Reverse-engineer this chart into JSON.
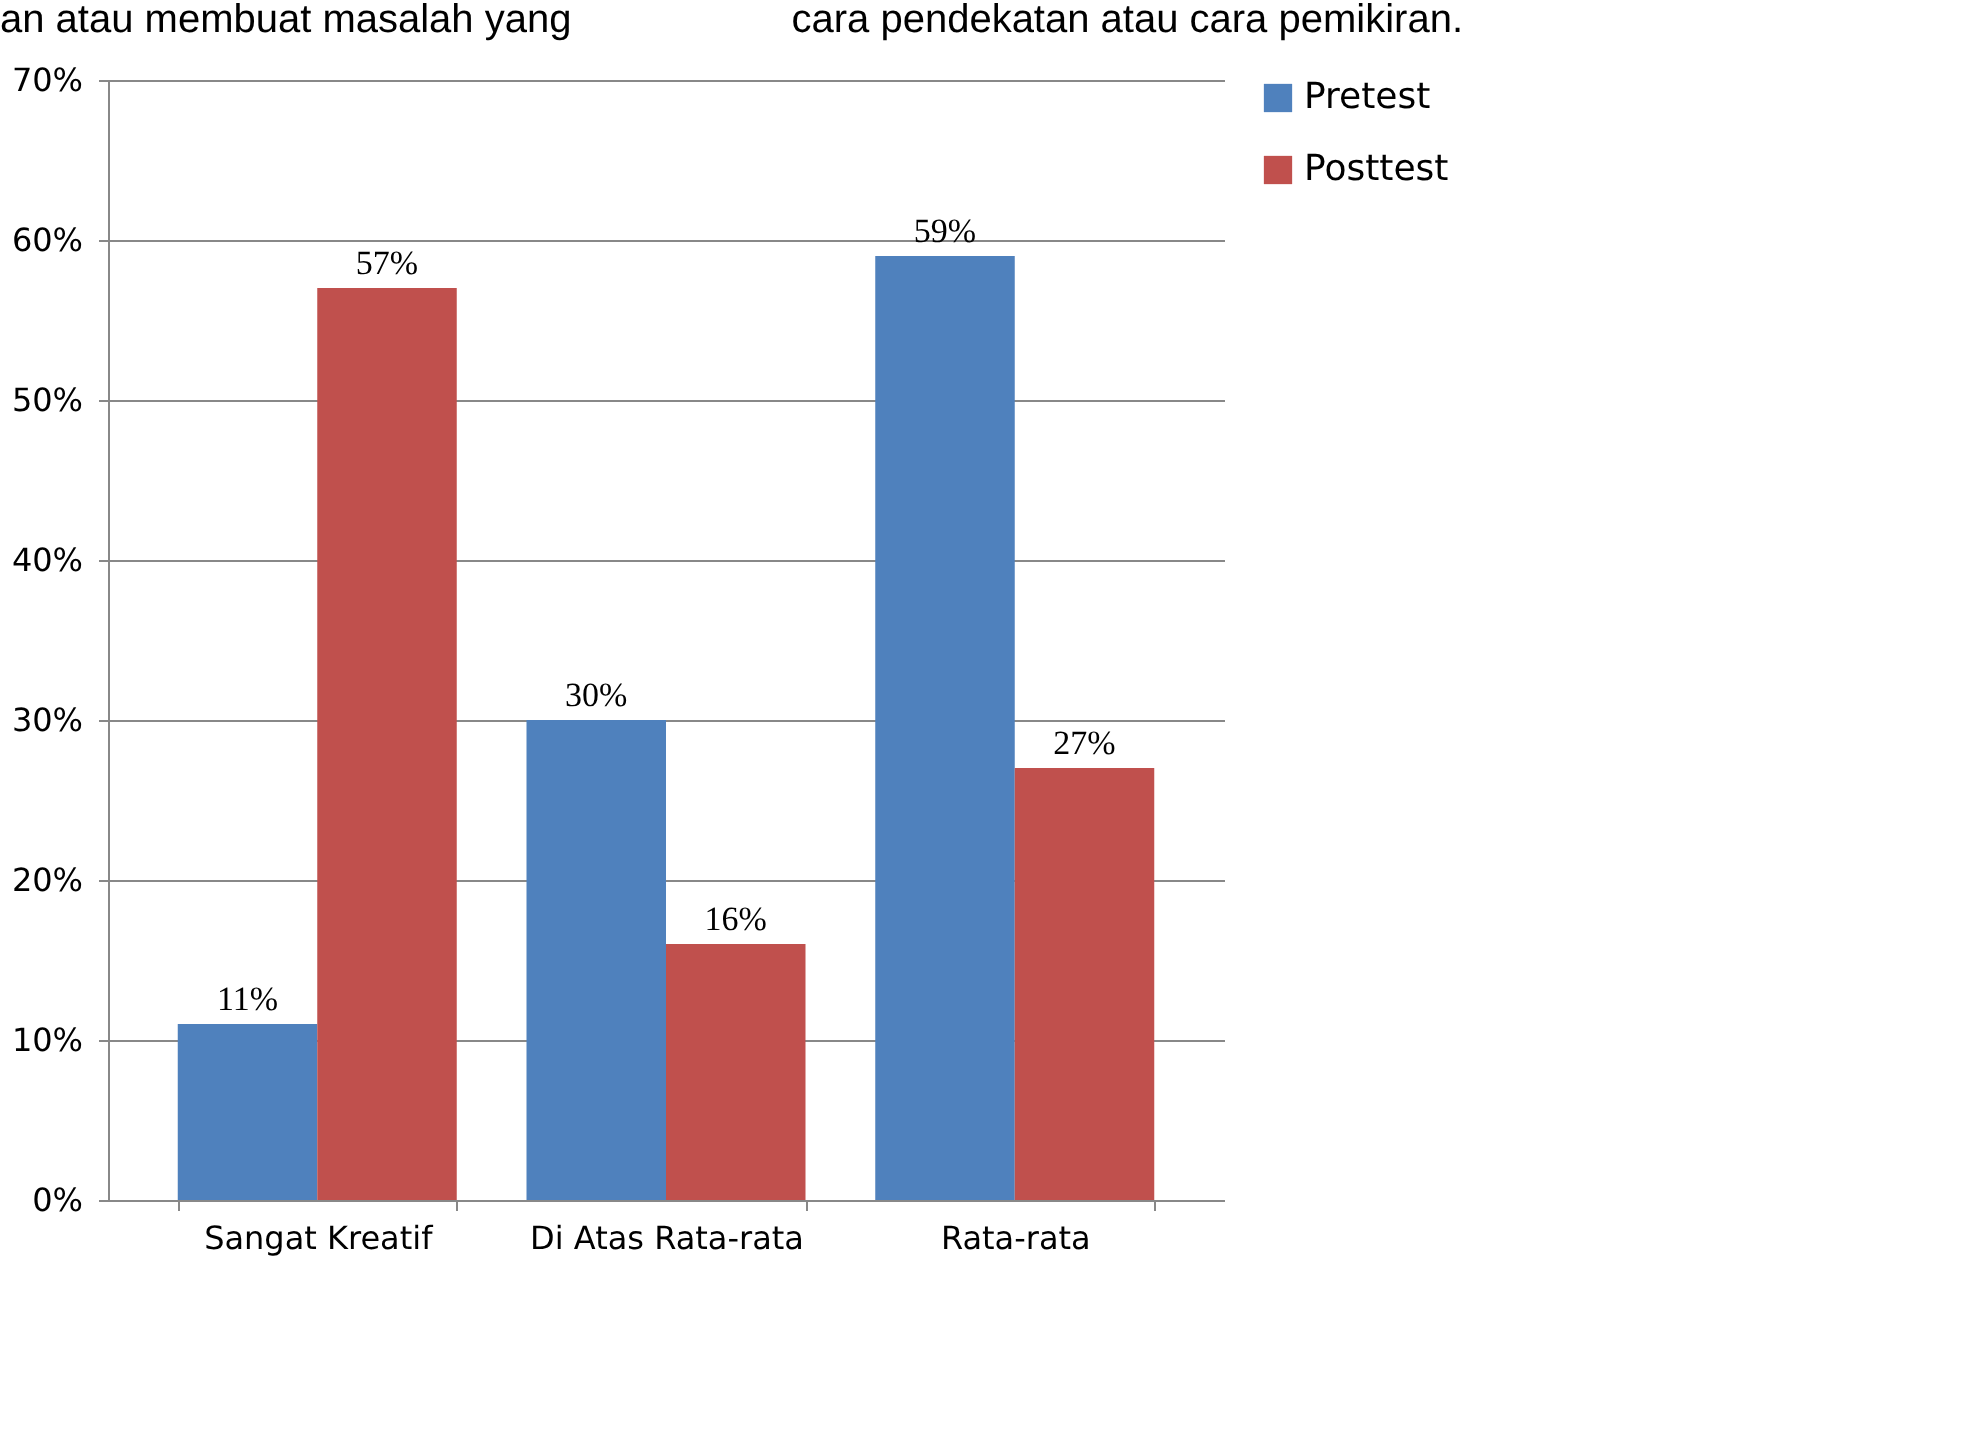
{
  "chart_data": {
    "type": "bar",
    "categories": [
      "Sangat Kreatif",
      "Di Atas Rata-rata",
      "Rata-rata"
    ],
    "series": [
      {
        "name": "Pretest",
        "color": "#4f81bd",
        "values": [
          11,
          30,
          59
        ],
        "value_labels": [
          "11%",
          "30%",
          "59%"
        ]
      },
      {
        "name": "Posttest",
        "color": "#c0504d",
        "values": [
          57,
          16,
          27
        ],
        "value_labels": [
          "57%",
          "16%",
          "27%"
        ]
      }
    ],
    "ylim": [
      0,
      70
    ],
    "yticks": [
      {
        "value": 0,
        "label": "0%"
      },
      {
        "value": 10,
        "label": "10%"
      },
      {
        "value": 20,
        "label": "20%"
      },
      {
        "value": 30,
        "label": "30%"
      },
      {
        "value": 40,
        "label": "40%"
      },
      {
        "value": 50,
        "label": "50%"
      },
      {
        "value": 60,
        "label": "60%"
      },
      {
        "value": 70,
        "label": "70%"
      }
    ],
    "grid": "y",
    "legend": "right",
    "annotations": [
      "an atau membuat masalah yang",
      "cara pendekatan atau cara pemikiran."
    ]
  }
}
